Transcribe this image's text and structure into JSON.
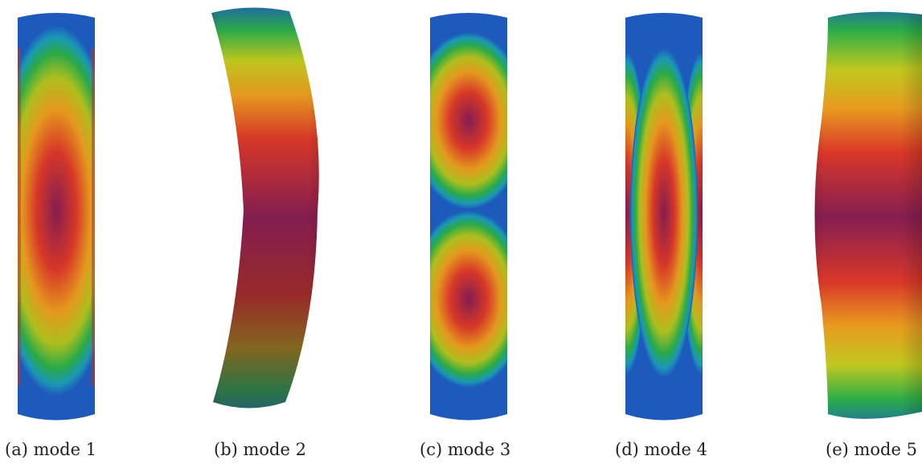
{
  "figure": {
    "panels": [
      {
        "caption": "(a) mode 1",
        "pattern": "single-central-lobe-with-side-stripes"
      },
      {
        "caption": "(b) mode 2",
        "pattern": "bending"
      },
      {
        "caption": "(c) mode 3",
        "pattern": "two-lobes"
      },
      {
        "caption": "(d) mode 4",
        "pattern": "central-lobe-with-side-stripes"
      },
      {
        "caption": "(e) mode 5",
        "pattern": "breathing"
      }
    ],
    "colormap": [
      "#1f5fc6",
      "#1b9fbf",
      "#2db34a",
      "#b7c820",
      "#f0a020",
      "#e23a2a",
      "#8a1f55"
    ]
  }
}
